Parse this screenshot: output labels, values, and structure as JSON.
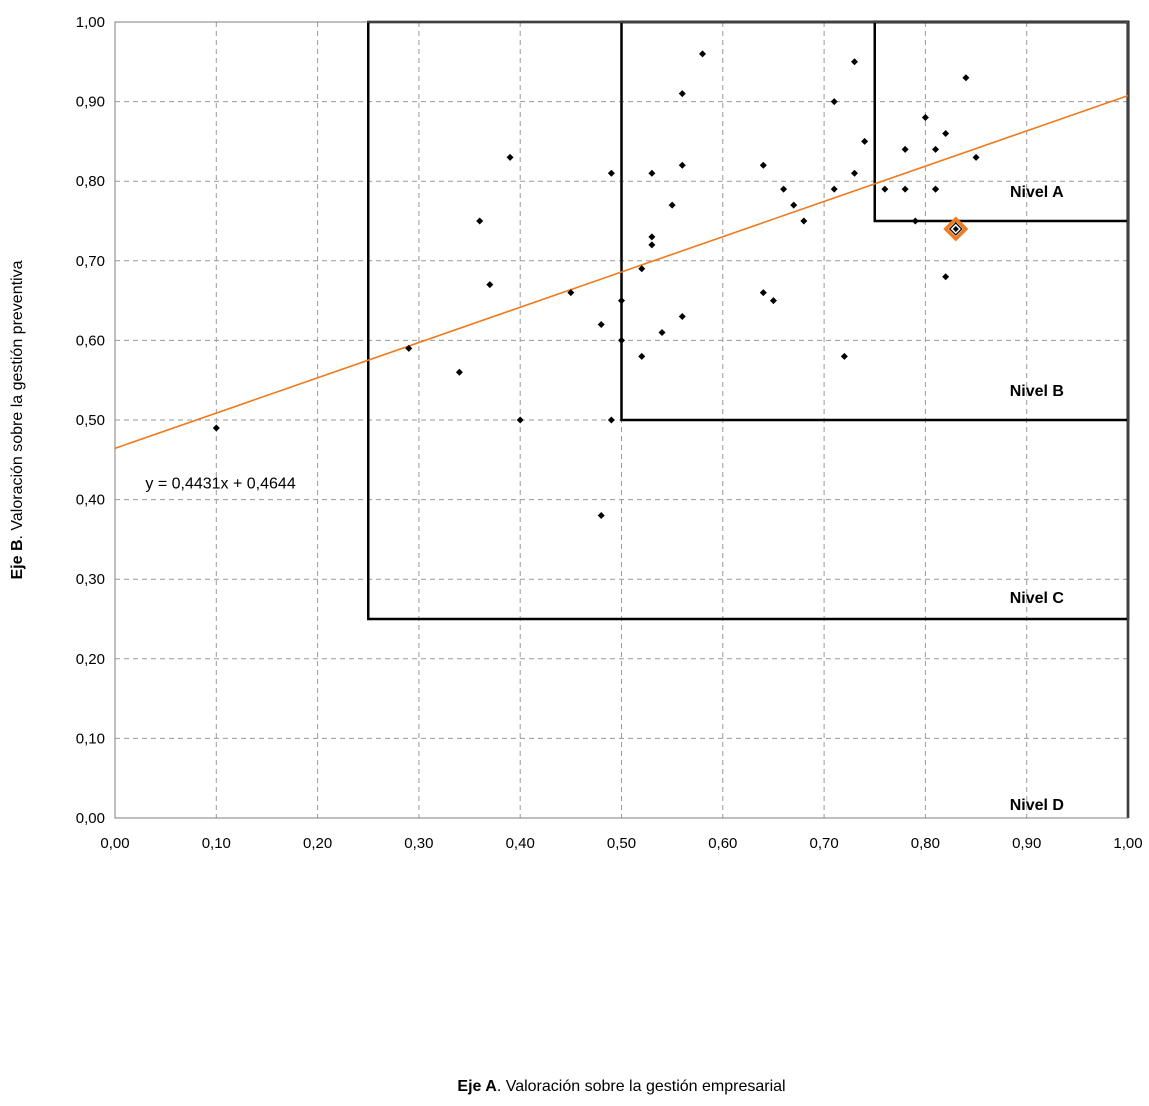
{
  "chart_data": {
    "type": "scatter",
    "xlabel_bold": "Eje A",
    "xlabel_rest": ". Valoración sobre la gestión empresarial",
    "ylabel_bold": "Eje B",
    "ylabel_rest": ". Valoración sobre la gestión  preventiva",
    "xlim": [
      0,
      1
    ],
    "ylim": [
      0,
      1
    ],
    "x_ticks": [
      0,
      0.1,
      0.2,
      0.3,
      0.4,
      0.5,
      0.6,
      0.7,
      0.8,
      0.9,
      1.0
    ],
    "y_ticks": [
      0,
      0.1,
      0.2,
      0.3,
      0.4,
      0.5,
      0.6,
      0.7,
      0.8,
      0.9,
      1.0
    ],
    "x_tick_labels": [
      "0,00",
      "0,10",
      "0,20",
      "0,30",
      "0,40",
      "0,50",
      "0,60",
      "0,70",
      "0,80",
      "0,90",
      "1,00"
    ],
    "y_tick_labels": [
      "0,00",
      "0,10",
      "0,20",
      "0,30",
      "0,40",
      "0,50",
      "0,60",
      "0,70",
      "0,80",
      "0,90",
      "1,00"
    ],
    "grid": true,
    "colors": {
      "points": "#000000",
      "trendline": "#f07a1e",
      "highlight": "#f07a1e",
      "frames": "#000000",
      "grid": "#9a9a9a"
    },
    "points": [
      [
        0.1,
        0.49
      ],
      [
        0.29,
        0.59
      ],
      [
        0.34,
        0.56
      ],
      [
        0.36,
        0.75
      ],
      [
        0.37,
        0.67
      ],
      [
        0.39,
        0.83
      ],
      [
        0.4,
        0.5
      ],
      [
        0.45,
        0.66
      ],
      [
        0.48,
        0.62
      ],
      [
        0.48,
        0.38
      ],
      [
        0.49,
        0.81
      ],
      [
        0.5,
        0.65
      ],
      [
        0.5,
        0.6
      ],
      [
        0.49,
        0.5
      ],
      [
        0.52,
        0.58
      ],
      [
        0.52,
        0.69
      ],
      [
        0.53,
        0.81
      ],
      [
        0.53,
        0.73
      ],
      [
        0.53,
        0.72
      ],
      [
        0.54,
        0.61
      ],
      [
        0.56,
        0.82
      ],
      [
        0.55,
        0.77
      ],
      [
        0.56,
        0.63
      ],
      [
        0.56,
        0.91
      ],
      [
        0.58,
        0.96
      ],
      [
        0.64,
        0.82
      ],
      [
        0.64,
        0.66
      ],
      [
        0.65,
        0.65
      ],
      [
        0.66,
        0.79
      ],
      [
        0.67,
        0.77
      ],
      [
        0.68,
        0.75
      ],
      [
        0.71,
        0.9
      ],
      [
        0.71,
        0.79
      ],
      [
        0.72,
        0.58
      ],
      [
        0.73,
        0.81
      ],
      [
        0.73,
        0.95
      ],
      [
        0.74,
        0.85
      ],
      [
        0.76,
        0.79
      ],
      [
        0.78,
        0.84
      ],
      [
        0.78,
        0.79
      ],
      [
        0.79,
        0.75
      ],
      [
        0.8,
        0.88
      ],
      [
        0.81,
        0.79
      ],
      [
        0.81,
        0.79
      ],
      [
        0.81,
        0.84
      ],
      [
        0.82,
        0.86
      ],
      [
        0.82,
        0.68
      ],
      [
        0.84,
        0.93
      ],
      [
        0.85,
        0.83
      ]
    ],
    "highlight_point": [
      0.83,
      0.74
    ],
    "trendline": {
      "slope": 0.4431,
      "intercept": 0.4644,
      "label": "y = 0,4431x + 0,4644",
      "label_at": [
        0.03,
        0.42
      ]
    },
    "levels": [
      {
        "name": "Nivel A",
        "x0": 0.75,
        "y0": 0.75,
        "label_at": [
          0.91,
          0.78
        ]
      },
      {
        "name": "Nivel B",
        "x0": 0.5,
        "y0": 0.5,
        "label_at": [
          0.91,
          0.53
        ]
      },
      {
        "name": "Nivel C",
        "x0": 0.25,
        "y0": 0.25,
        "label_at": [
          0.91,
          0.27
        ]
      },
      {
        "name": "Nivel  D",
        "x0": 0.0,
        "y0": 0.0,
        "label_at": [
          0.91,
          0.01
        ]
      }
    ]
  }
}
